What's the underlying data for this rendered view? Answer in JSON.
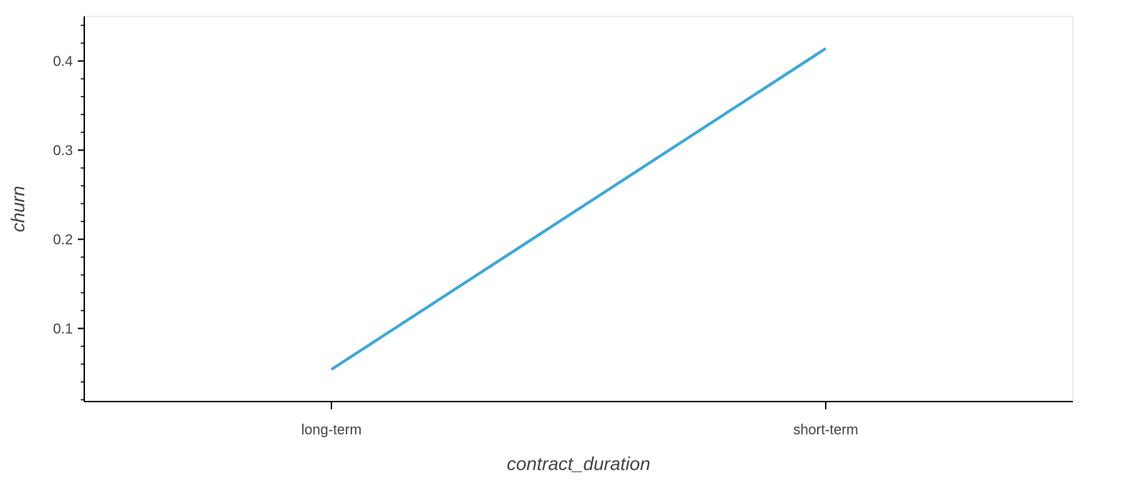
{
  "chart_data": {
    "type": "line",
    "title": "",
    "xlabel": "contract_duration",
    "ylabel": "churn",
    "categories": [
      "long-term",
      "short-term"
    ],
    "series": [
      {
        "values": [
          0.054,
          0.414
        ],
        "color": "#30a2da"
      }
    ],
    "ylim": [
      0.018,
      0.45
    ],
    "yticks": [
      0.1,
      0.2,
      0.3,
      0.4
    ],
    "ytick_labels": [
      "0.1",
      "0.2",
      "0.3",
      "0.4"
    ],
    "grid": false,
    "colors": {
      "axis": "#000000",
      "frame": "#e5e5e5",
      "text": "#444444"
    }
  }
}
